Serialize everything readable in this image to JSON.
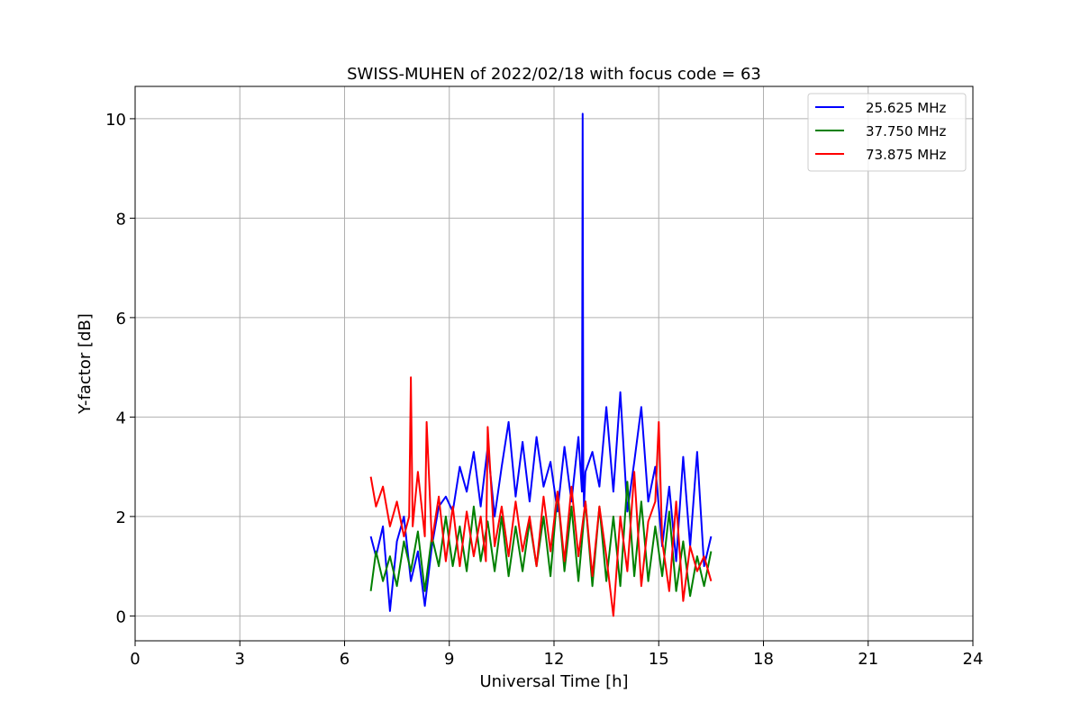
{
  "chart_data": {
    "type": "line",
    "title": "SWISS-MUHEN of 2022/02/18 with focus code = 63",
    "xlabel": "Universal Time [h]",
    "ylabel": "Y-factor [dB]",
    "xlim": [
      0,
      24
    ],
    "ylim": [
      -0.5,
      10.65
    ],
    "xticks": [
      0,
      3,
      6,
      9,
      12,
      15,
      18,
      21,
      24
    ],
    "xtick_labels": [
      "0",
      "3",
      "6",
      "9",
      "12",
      "15",
      "18",
      "21",
      "24"
    ],
    "yticks": [
      0,
      2,
      4,
      6,
      8,
      10
    ],
    "ytick_labels": [
      "0",
      "2",
      "4",
      "6",
      "8",
      "10"
    ],
    "grid": true,
    "legend_position": "top-right",
    "series": [
      {
        "name": "25.625 MHz",
        "color": "#0000ff",
        "x": [
          6.75,
          6.9,
          7.1,
          7.3,
          7.5,
          7.7,
          7.9,
          8.1,
          8.3,
          8.5,
          8.7,
          8.9,
          9.1,
          9.3,
          9.5,
          9.7,
          9.9,
          10.1,
          10.3,
          10.5,
          10.7,
          10.9,
          11.1,
          11.3,
          11.5,
          11.7,
          11.9,
          12.1,
          12.3,
          12.5,
          12.7,
          12.8,
          12.82,
          12.84,
          12.86,
          12.9,
          13.1,
          13.3,
          13.5,
          13.7,
          13.9,
          14.1,
          14.3,
          14.5,
          14.7,
          14.9,
          15.1,
          15.3,
          15.5,
          15.7,
          15.9,
          16.1,
          16.3,
          16.5
        ],
        "y": [
          1.6,
          1.2,
          1.8,
          0.1,
          1.5,
          2.0,
          0.7,
          1.3,
          0.2,
          1.4,
          2.2,
          2.4,
          2.1,
          3.0,
          2.5,
          3.3,
          2.2,
          3.4,
          2.0,
          3.0,
          3.9,
          2.4,
          3.5,
          2.3,
          3.6,
          2.6,
          3.1,
          2.1,
          3.4,
          2.3,
          3.6,
          2.5,
          10.1,
          3.0,
          2.2,
          2.9,
          3.3,
          2.6,
          4.2,
          2.5,
          4.5,
          2.1,
          3.1,
          4.2,
          2.3,
          3.0,
          1.4,
          2.6,
          1.1,
          3.2,
          1.4,
          3.3,
          1.0,
          1.6
        ]
      },
      {
        "name": "37.750 MHz",
        "color": "#008000",
        "x": [
          6.75,
          6.9,
          7.1,
          7.3,
          7.5,
          7.7,
          7.9,
          8.1,
          8.3,
          8.5,
          8.7,
          8.9,
          9.1,
          9.3,
          9.5,
          9.7,
          9.9,
          10.1,
          10.3,
          10.5,
          10.7,
          10.9,
          11.1,
          11.3,
          11.5,
          11.7,
          11.9,
          12.1,
          12.3,
          12.5,
          12.7,
          12.9,
          13.1,
          13.3,
          13.5,
          13.7,
          13.9,
          14.1,
          14.3,
          14.5,
          14.7,
          14.9,
          15.1,
          15.3,
          15.5,
          15.7,
          15.9,
          16.1,
          16.3,
          16.5
        ],
        "y": [
          0.5,
          1.3,
          0.7,
          1.2,
          0.6,
          1.5,
          0.9,
          1.7,
          0.5,
          1.6,
          1.0,
          2.0,
          1.0,
          1.8,
          0.9,
          2.2,
          1.1,
          1.9,
          0.9,
          2.0,
          0.8,
          1.8,
          0.9,
          1.9,
          1.0,
          2.0,
          0.8,
          2.5,
          0.9,
          2.2,
          0.7,
          2.3,
          0.6,
          2.2,
          0.7,
          2.0,
          0.6,
          2.7,
          0.8,
          2.3,
          0.7,
          1.8,
          0.8,
          2.1,
          0.5,
          1.5,
          0.4,
          1.2,
          0.6,
          1.3
        ]
      },
      {
        "name": "73.875 MHz",
        "color": "#ff0000",
        "x": [
          6.75,
          6.9,
          7.1,
          7.3,
          7.5,
          7.7,
          7.85,
          7.9,
          7.95,
          8.1,
          8.3,
          8.35,
          8.5,
          8.7,
          8.9,
          9.1,
          9.3,
          9.5,
          9.7,
          9.9,
          10.05,
          10.1,
          10.3,
          10.5,
          10.7,
          10.9,
          11.1,
          11.3,
          11.5,
          11.7,
          11.9,
          12.1,
          12.3,
          12.5,
          12.7,
          12.9,
          13.1,
          13.3,
          13.5,
          13.7,
          13.9,
          14.1,
          14.3,
          14.5,
          14.7,
          14.9,
          15.0,
          15.1,
          15.3,
          15.5,
          15.7,
          15.9,
          16.1,
          16.3,
          16.5
        ],
        "y": [
          2.8,
          2.2,
          2.6,
          1.8,
          2.3,
          1.6,
          2.0,
          4.8,
          1.8,
          2.9,
          1.6,
          3.9,
          1.5,
          2.4,
          1.1,
          2.2,
          1.0,
          2.1,
          1.2,
          2.0,
          1.1,
          3.8,
          1.4,
          2.2,
          1.2,
          2.3,
          1.3,
          2.0,
          1.0,
          2.4,
          1.3,
          2.5,
          1.1,
          2.6,
          1.2,
          2.3,
          0.8,
          2.2,
          1.2,
          0.0,
          2.0,
          0.9,
          2.9,
          0.6,
          1.9,
          2.3,
          3.9,
          1.5,
          0.5,
          2.3,
          0.3,
          1.4,
          0.9,
          1.2,
          0.7
        ]
      }
    ]
  }
}
